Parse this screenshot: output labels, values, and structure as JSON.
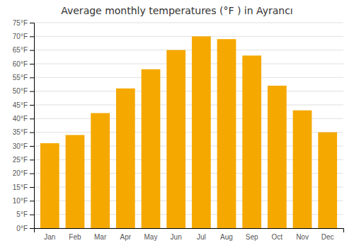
{
  "chart_data": {
    "type": "bar",
    "title": "Average monthly temperatures (°F ) in Ayrancı",
    "categories": [
      "Jan",
      "Feb",
      "Mar",
      "Apr",
      "May",
      "Jun",
      "Jul",
      "Aug",
      "Sep",
      "Oct",
      "Nov",
      "Dec"
    ],
    "values": [
      31,
      34,
      42,
      51,
      58,
      65,
      70,
      69,
      63,
      52,
      43,
      35
    ],
    "color": "#F5A800",
    "ylim": [
      0,
      75
    ],
    "yticks": [
      {
        "value": 0,
        "label": "0°F"
      },
      {
        "value": 5,
        "label": "5°F"
      },
      {
        "value": 10,
        "label": "10°F"
      },
      {
        "value": 15,
        "label": "15°F"
      },
      {
        "value": 20,
        "label": "20°F"
      },
      {
        "value": 25,
        "label": "25°F"
      },
      {
        "value": 30,
        "label": "30°F"
      },
      {
        "value": 35,
        "label": "35°F"
      },
      {
        "value": 40,
        "label": "40°F"
      },
      {
        "value": 45,
        "label": "45°F"
      },
      {
        "value": 50,
        "label": "50°F"
      },
      {
        "value": 55,
        "label": "55°F"
      },
      {
        "value": 60,
        "label": "60°F"
      },
      {
        "value": 65,
        "label": "65°F"
      },
      {
        "value": 70,
        "label": "70°F"
      },
      {
        "value": 75,
        "label": "75°F"
      }
    ],
    "grid": true
  }
}
